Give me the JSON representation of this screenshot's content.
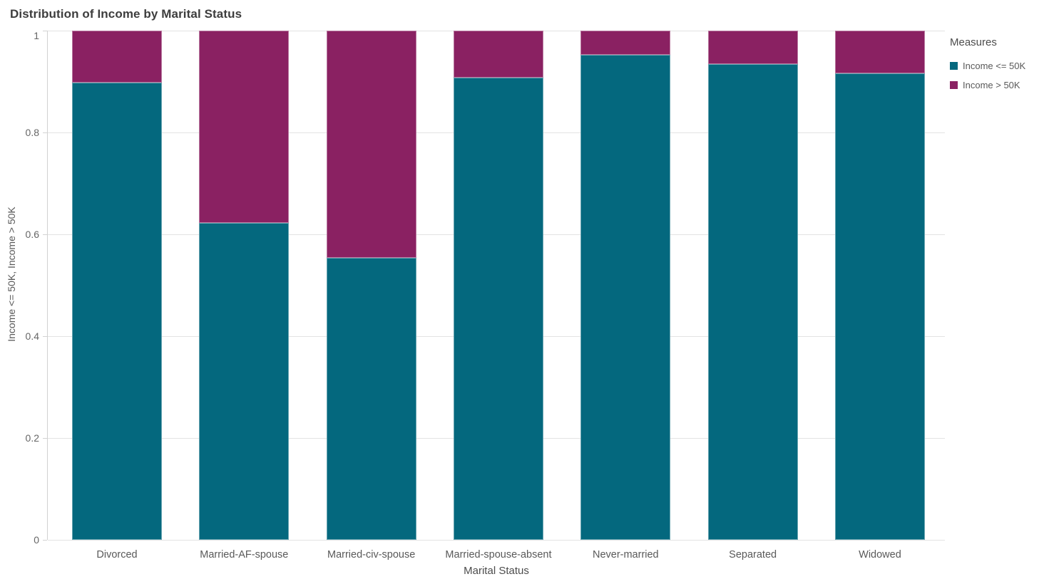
{
  "chart_data": {
    "type": "bar",
    "stacked": true,
    "normalized": true,
    "title": "Distribution of Income by Marital Status",
    "xlabel": "Marital Status",
    "ylabel": "Income <= 50K, Income > 50K",
    "legend_title": "Measures",
    "legend_position": "right",
    "grid": true,
    "ylim": [
      0,
      1
    ],
    "yticks": [
      {
        "value": 0,
        "label": "0"
      },
      {
        "value": 0.2,
        "label": "0.2"
      },
      {
        "value": 0.4,
        "label": "0.4"
      },
      {
        "value": 0.6,
        "label": "0.6"
      },
      {
        "value": 0.8,
        "label": "0.8"
      },
      {
        "value": 1,
        "label": "1"
      }
    ],
    "categories": [
      "Divorced",
      "Married-AF-spouse",
      "Married-civ-spouse",
      "Married-spouse-absent",
      "Never-married",
      "Separated",
      "Widowed"
    ],
    "series": [
      {
        "name": "Income <= 50K",
        "color": "#04687e",
        "values": [
          0.898,
          0.622,
          0.554,
          0.908,
          0.953,
          0.934,
          0.916
        ]
      },
      {
        "name": "Income > 50K",
        "color": "#8a2162",
        "values": [
          0.102,
          0.378,
          0.446,
          0.092,
          0.047,
          0.066,
          0.084
        ]
      }
    ]
  }
}
